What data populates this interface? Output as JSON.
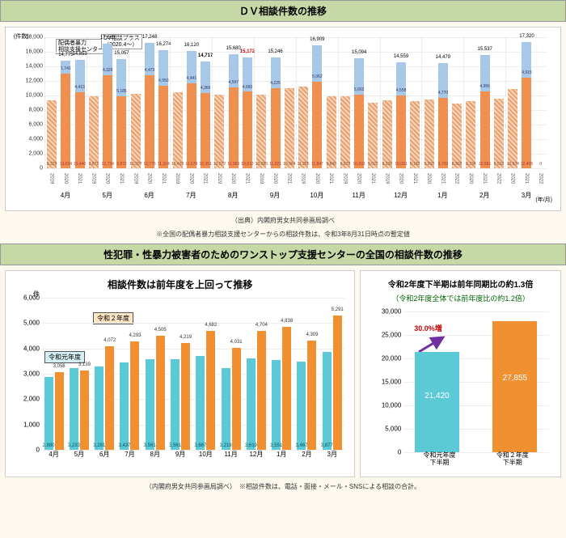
{
  "titles": {
    "top": "ＤＶ相談件数の推移",
    "mid": "性犯罪・性暴力被害者のためのワンストップ支援センターの全国の相談件数の推移",
    "bl": "相談件数は前年度を上回って推移",
    "br_l1": "令和2年度下半期は前年同期比の約1.3倍",
    "br_l2": "（令和2年度全体では前年度比の約1.2倍）"
  },
  "footnotes": {
    "top_src": "（出典）内閣府男女共同参画局調べ",
    "top_note": "※全国の配偶者暴力相談支援センターからの相談件数は、令和3年8月31日時点の暫定値",
    "bottom": "（内閣府男女共同参画局調べ）　※相談件数は、電話・面接・メール・SNSによる相談の合計。"
  },
  "top_chart": {
    "y_title": "(件数)",
    "ymax": 18000,
    "ytick_step": 2000,
    "x_unit": "(年/月)",
    "annotations": {
      "center_label": "配偶者暴力\n相談支援センター",
      "plus_label": "DV相談プラス\n（2020.4～）"
    },
    "colors": {
      "base": "#e8a070",
      "center": "#f09050",
      "plus": "#a8c8e8"
    },
    "months": [
      "4月",
      "5月",
      "6月",
      "7月",
      "8月",
      "9月",
      "10月",
      "11月",
      "12月",
      "1月",
      "2月",
      "3月"
    ],
    "groups": [
      {
        "month": "4月",
        "bars": [
          {
            "year": "2019",
            "base": 9329
          },
          {
            "year": "2020",
            "center": 13034,
            "plus": 1741,
            "total": 14775,
            "show_total": true
          },
          {
            "year": "2021",
            "center": 10440,
            "plus": 4413,
            "total": 14853,
            "show_total": true,
            "highlight": false
          }
        ]
      },
      {
        "month": "5月",
        "bars": [
          {
            "year": "2019",
            "base": 9871
          },
          {
            "year": "2020",
            "center": 12734,
            "plus": 4329,
            "total": 17063,
            "show_total": true
          },
          {
            "year": "2021",
            "center": 9872,
            "plus": 5185,
            "total": 15057,
            "show_total": true
          }
        ]
      },
      {
        "month": "6月",
        "bars": [
          {
            "year": "2019",
            "base": 10207
          },
          {
            "year": "2020",
            "center": 12775,
            "plus": 4473,
            "total": 17248,
            "show_total": true
          },
          {
            "year": "2021",
            "center": 11324,
            "plus": 4950,
            "total": 16274,
            "show_total": true
          }
        ]
      },
      {
        "month": "7月",
        "bars": [
          {
            "year": "2019",
            "base": 10433
          },
          {
            "year": "2020",
            "center": 11679,
            "plus": 4441,
            "total": 16120,
            "show_total": true
          },
          {
            "year": "2021",
            "center": 10351,
            "plus": 4366,
            "total": 14717,
            "show_total": true,
            "highlight": true
          }
        ]
      },
      {
        "month": "8月",
        "bars": [
          {
            "year": "2019",
            "base": 10072
          },
          {
            "year": "2020",
            "center": 11083,
            "plus": 4597,
            "total": 15680,
            "show_total": true
          },
          {
            "year": "2021",
            "center": 10512,
            "plus": 4660,
            "total": 15172,
            "show_total": true,
            "highlight": true,
            "total_color": "#cc0000"
          }
        ]
      },
      {
        "month": "9月",
        "bars": [
          {
            "year": "2019",
            "base": 10083
          },
          {
            "year": "2020",
            "center": 11021,
            "plus": 4225,
            "total": 15246,
            "show_total": true
          },
          {
            "year": "2021",
            "base": 10964
          }
        ]
      },
      {
        "month": "10月",
        "bars": [
          {
            "year": "2019",
            "base": 11255
          },
          {
            "year": "2020",
            "center": 11847,
            "plus": 5062,
            "total": 16909,
            "show_total": true
          },
          {
            "year": "2021",
            "base": 9840
          }
        ]
      },
      {
        "month": "11月",
        "bars": [
          {
            "year": "2019",
            "base": 9879
          },
          {
            "year": "2020",
            "center": 10091,
            "plus": 5003,
            "total": 15094,
            "show_total": true
          },
          {
            "year": "2021",
            "base": 9022
          }
        ]
      },
      {
        "month": "12月",
        "bars": [
          {
            "year": "2019",
            "base": 9326
          },
          {
            "year": "2020",
            "center": 10001,
            "plus": 4558,
            "total": 14559,
            "show_total": true
          },
          {
            "year": "2021",
            "base": 9182
          }
        ]
      },
      {
        "month": "1月",
        "bars": [
          {
            "year": "2020",
            "base": 9393
          },
          {
            "year": "2021",
            "center": 9709,
            "plus": 4770,
            "total": 14479,
            "show_total": true
          },
          {
            "year": "2022",
            "base": 8902
          }
        ]
      },
      {
        "month": "2月",
        "bars": [
          {
            "year": "2020",
            "base": 9234
          },
          {
            "year": "2021",
            "center": 10581,
            "plus": 4956,
            "total": 15537,
            "show_total": true
          },
          {
            "year": "2022",
            "base": 9516
          }
        ]
      },
      {
        "month": "3月",
        "bars": [
          {
            "year": "2020",
            "base": 10924
          },
          {
            "year": "2021",
            "center": 12405,
            "plus": 4915,
            "total": 17320,
            "show_total": true
          },
          {
            "year": "2022",
            "base": 0
          }
        ]
      }
    ]
  },
  "bl_chart": {
    "y_unit": "件",
    "ymax": 6000,
    "ytick_step": 1000,
    "legend": {
      "r1": "令和元年度",
      "r2": "令和２年度"
    },
    "colors": {
      "r1": "#5bc9d6",
      "r2": "#f09030"
    },
    "months": [
      "4月",
      "5月",
      "6月",
      "7月",
      "8月",
      "9月",
      "10月",
      "11月",
      "12月",
      "1月",
      "2月",
      "3月"
    ],
    "r1": {
      "4月": 2880,
      "5月": 3233,
      "6月": 3281,
      "7月": 3437,
      "8月": 3561,
      "9月": 3561,
      "10月": 3687,
      "11月": 3219,
      "12月": 3619,
      "1月": 3551,
      "2月": 3467,
      "3月": 3877
    },
    "r2": {
      "4月": 3058,
      "5月": 3139,
      "6月": 4072,
      "7月": 4293,
      "8月": 4505,
      "9月": 4219,
      "10月": 4682,
      "11月": 4031,
      "12月": 4704,
      "1月": 4838,
      "2月": 4309,
      "3月": 5291
    }
  },
  "br_chart": {
    "ymax": 30000,
    "ytick_step": 5000,
    "growth": "30.0%増",
    "bars": [
      {
        "label": "令和元年度\n下半期",
        "value": 21420,
        "color": "#5bc9d6",
        "text": "21,420"
      },
      {
        "label": "令和２年度\n下半期",
        "value": 27855,
        "color": "#f09030",
        "text": "27,855"
      }
    ]
  }
}
